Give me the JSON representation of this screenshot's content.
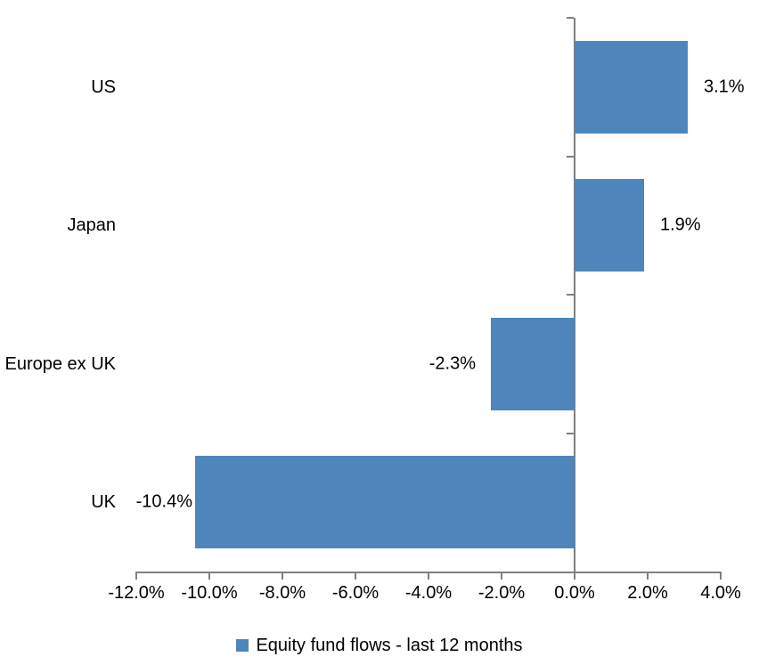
{
  "chart_data": {
    "type": "bar",
    "orientation": "horizontal",
    "title": "",
    "categories": [
      "US",
      "Japan",
      "Europe ex UK",
      "UK"
    ],
    "values": [
      3.1,
      1.9,
      -2.3,
      -10.4
    ],
    "value_labels": [
      "3.1%",
      "1.9%",
      "-2.3%",
      "-10.4%"
    ],
    "x_tick_values": [
      -12,
      -10,
      -8,
      -6,
      -4,
      -2,
      0,
      2,
      4
    ],
    "x_tick_labels": [
      "-12.0%",
      "-10.0%",
      "-8.0%",
      "-6.0%",
      "-4.0%",
      "-2.0%",
      "0.0%",
      "2.0%",
      "4.0%"
    ],
    "xlim": [
      -12,
      4
    ],
    "grid": false,
    "legend": {
      "label": "Equity fund flows - last 12 months",
      "position": "bottom"
    },
    "colors": {
      "bar": "#4E86BC",
      "axis": "#808080",
      "text": "#000000",
      "background": "#FFFFFF"
    }
  }
}
